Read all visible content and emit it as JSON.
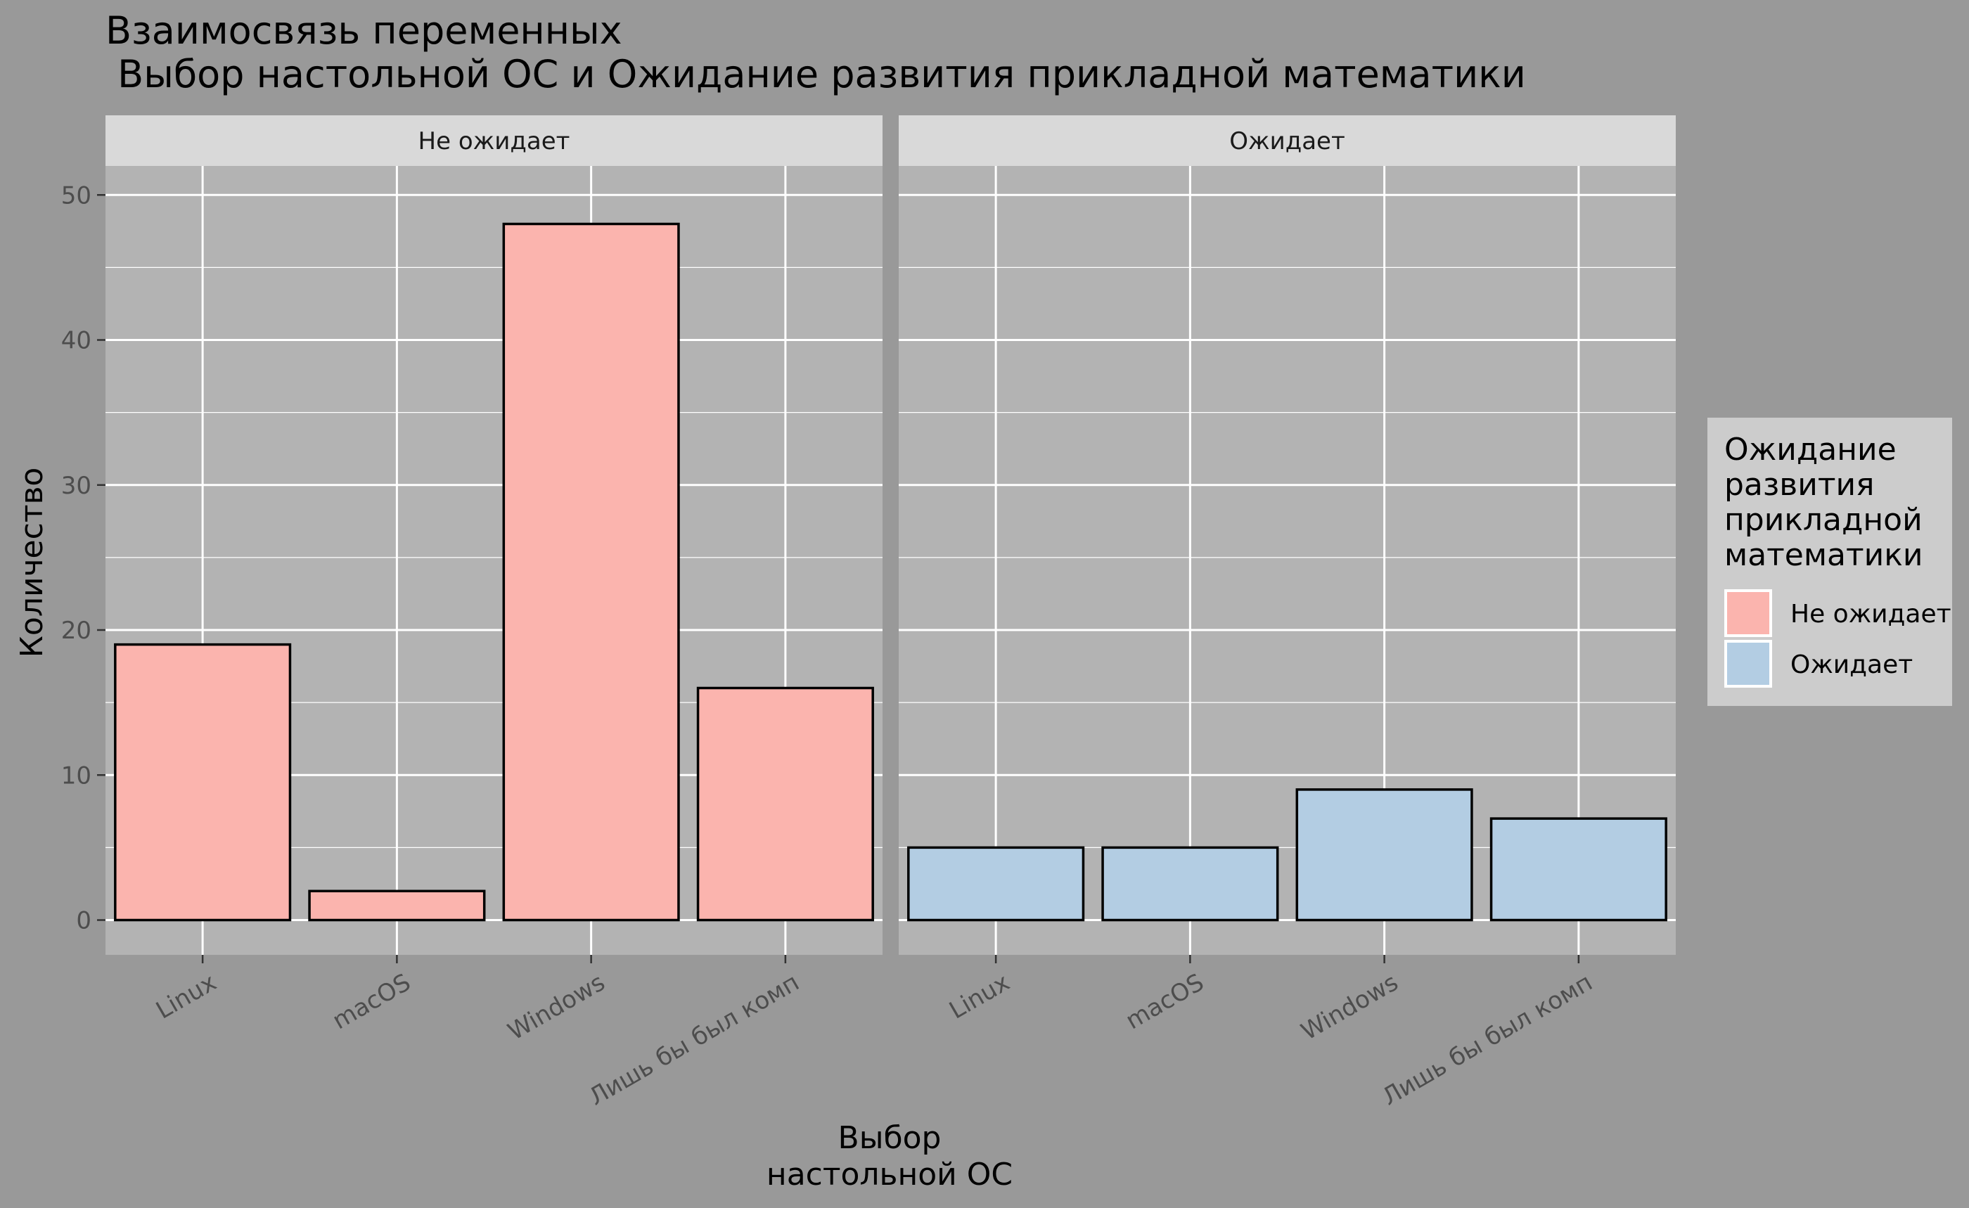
{
  "chart_data": {
    "type": "bar",
    "title_line1": "Взаимосвязь переменных",
    "title_line2": " Выбор настольной ОС и Ожидание развития прикладной математики",
    "xlabel_line1": "Выбор",
    "xlabel_line2": "настольной ОС",
    "ylabel": "Количество",
    "ylim": [
      -2.4,
      52
    ],
    "yticks": [
      0,
      10,
      20,
      30,
      40,
      50
    ],
    "grid": true,
    "categories": [
      "Linux",
      "macOS",
      "Windows",
      "Лишь бы был комп"
    ],
    "facets": [
      {
        "name": "Не ожидает",
        "color": "#FBB4AE",
        "values": [
          19,
          2,
          48,
          16
        ]
      },
      {
        "name": "Ожидает",
        "color": "#B3CDE3",
        "values": [
          5,
          5,
          9,
          7
        ]
      }
    ],
    "legend": {
      "position": "right",
      "title_lines": [
        "Ожидание",
        "развития",
        "прикладной",
        "математики"
      ],
      "entries": [
        {
          "label": "Не ожидает",
          "color": "#FBB4AE"
        },
        {
          "label": "Ожидает",
          "color": "#B3CDE3"
        }
      ]
    },
    "colors": {
      "background": "#999999",
      "panel": "#B3B3B3",
      "strip": "#D9D9D9",
      "grid": "#FFFFFF",
      "bar_outline": "#000000"
    }
  }
}
